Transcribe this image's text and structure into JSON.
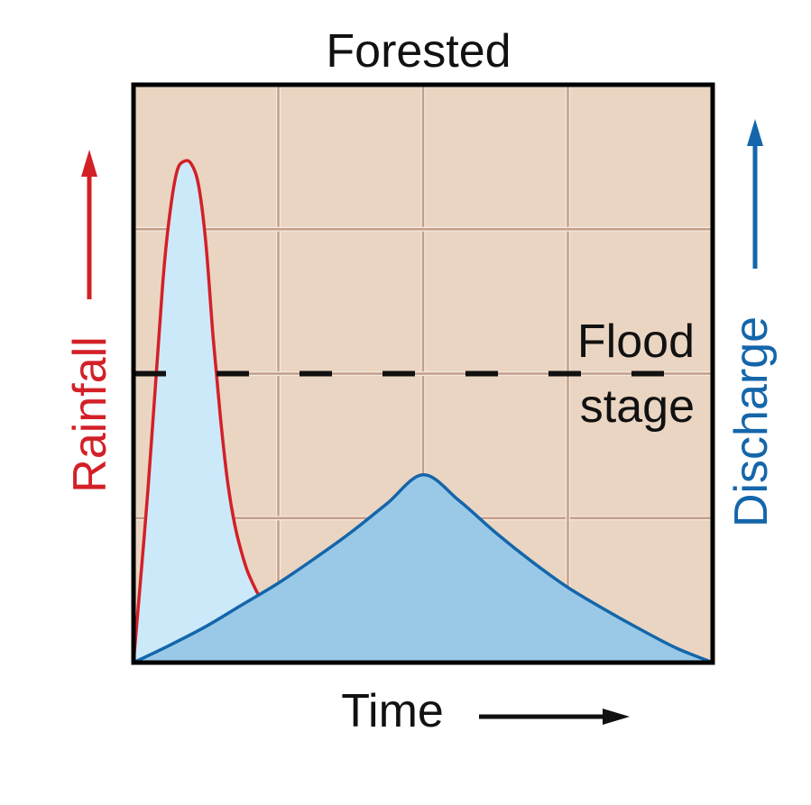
{
  "chart_data": {
    "type": "area",
    "title": "Forested",
    "xlabel": "Time",
    "ylabel_left": "Rainfall",
    "ylabel_right": "Discharge",
    "grid": true,
    "xlim": [
      0,
      4
    ],
    "ylim": [
      0,
      4
    ],
    "annotation": {
      "text_line1": "Flood",
      "text_line2": "stage",
      "y": 2.0
    },
    "series": [
      {
        "name": "Rainfall",
        "x": [
          0.0,
          0.1,
          0.2,
          0.25,
          0.3,
          0.35,
          0.4,
          0.45,
          0.5,
          0.55,
          0.6,
          0.65,
          0.7,
          0.75,
          0.8,
          0.9,
          1.0,
          1.1,
          1.2
        ],
        "y": [
          0.0,
          1.2,
          2.6,
          3.1,
          3.4,
          3.47,
          3.45,
          3.3,
          2.9,
          2.25,
          1.7,
          1.25,
          0.95,
          0.75,
          0.6,
          0.4,
          0.25,
          0.14,
          0.08
        ]
      },
      {
        "name": "Discharge",
        "x": [
          0.0,
          0.25,
          0.5,
          0.75,
          1.0,
          1.25,
          1.5,
          1.75,
          2.0,
          2.25,
          2.5,
          2.75,
          3.0,
          3.25,
          3.5,
          3.75,
          4.0
        ],
        "y": [
          0.0,
          0.12,
          0.25,
          0.4,
          0.55,
          0.72,
          0.9,
          1.1,
          1.3,
          1.12,
          0.9,
          0.7,
          0.52,
          0.37,
          0.23,
          0.1,
          0.0
        ]
      }
    ]
  },
  "colors": {
    "plot_bg": "#ead5c2",
    "grid": "#c49e88",
    "grid_highlight": "#f5e9de",
    "frame": "#000000",
    "rainfall_line": "#d32027",
    "rainfall_fill": "#cce9f9",
    "discharge_line": "#1466aa",
    "discharge_fill": "#9ac9e8",
    "text": "#111111"
  }
}
